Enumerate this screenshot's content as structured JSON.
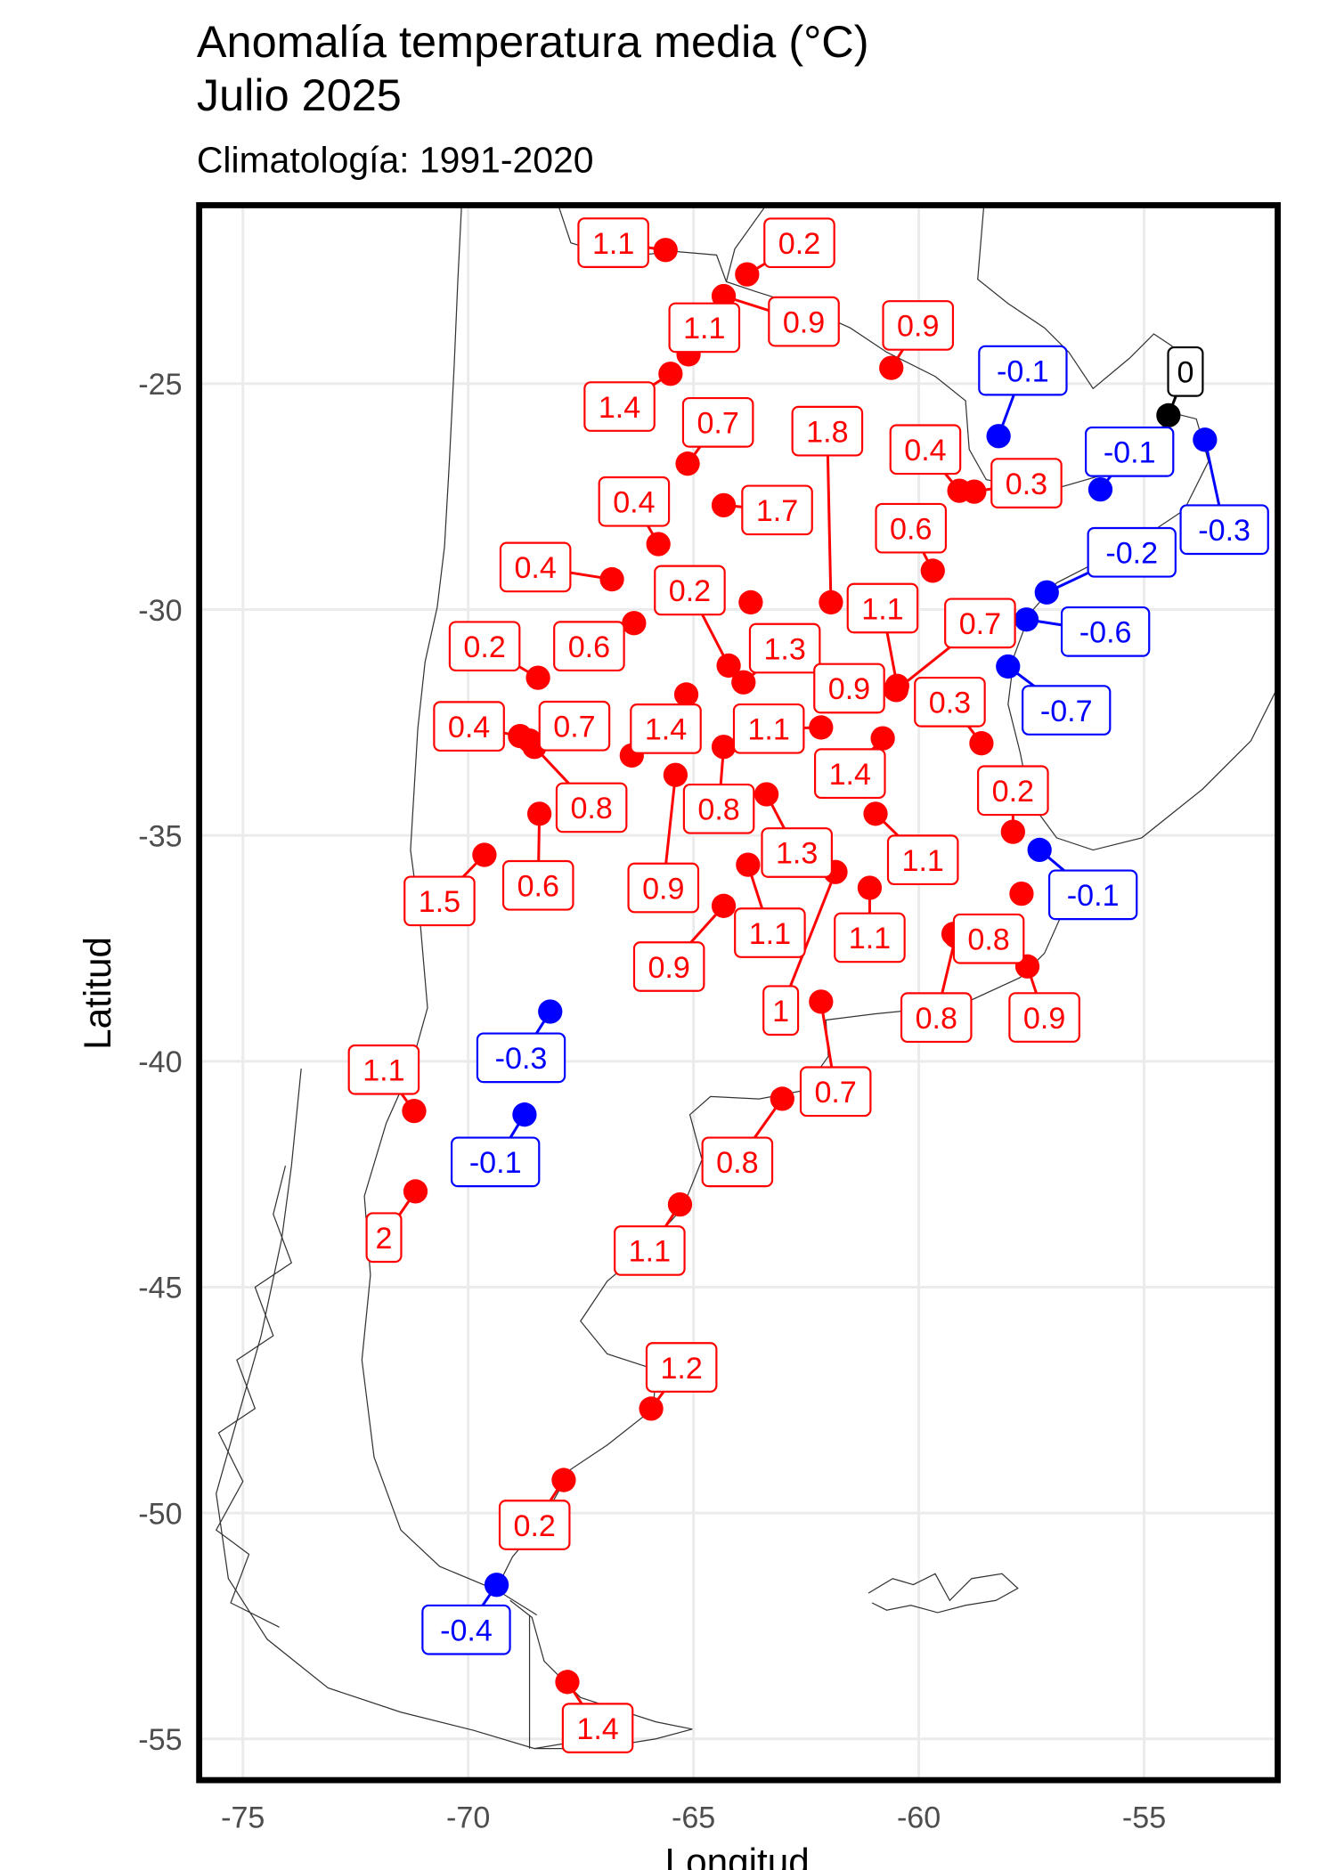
{
  "title_line1": "Anomalía temperatura media (°C)",
  "title_line2": "Julio 2025",
  "subtitle": "Climatología: 1991-2020",
  "chart_data": {
    "type": "scatter",
    "xlabel": "Longitud",
    "ylabel": "Latitud",
    "xlim": [
      -76,
      -52
    ],
    "ylim": [
      -56,
      -21
    ],
    "x_ticks": [
      -75,
      -70,
      -65,
      -60,
      -55
    ],
    "y_ticks": [
      -25,
      -30,
      -35,
      -40,
      -45,
      -50,
      -55
    ],
    "x_tick_labels": [
      "-75",
      "-70",
      "-65",
      "-60",
      "-55"
    ],
    "y_tick_labels": [
      "-25",
      "-30",
      "-35",
      "-40",
      "-45",
      "-50",
      "-55"
    ],
    "grid": true,
    "colors": {
      "positive": "#ff0000",
      "negative": "#0000ff",
      "zero": "#000000"
    },
    "stations": [
      {
        "lon": -65.62,
        "lat": -22.04,
        "value": 1.1
      },
      {
        "lon": -63.81,
        "lat": -22.58,
        "value": 0.2
      },
      {
        "lon": -64.33,
        "lat": -23.06,
        "value": 0.9
      },
      {
        "lon": -65.11,
        "lat": -24.35,
        "value": 1.1
      },
      {
        "lon": -65.51,
        "lat": -24.78,
        "value": 1.4
      },
      {
        "lon": -60.61,
        "lat": -24.65,
        "value": 0.9
      },
      {
        "lon": -58.23,
        "lat": -26.16,
        "value": -0.1
      },
      {
        "lon": -54.46,
        "lat": -25.7,
        "value": 0
      },
      {
        "lon": -53.65,
        "lat": -26.24,
        "value": -0.3
      },
      {
        "lon": -55.97,
        "lat": -27.34,
        "value": -0.1
      },
      {
        "lon": -65.13,
        "lat": -26.77,
        "value": 0.7
      },
      {
        "lon": -59.1,
        "lat": -27.37,
        "value": 0.4
      },
      {
        "lon": -58.77,
        "lat": -27.39,
        "value": 0.3
      },
      {
        "lon": -64.33,
        "lat": -27.69,
        "value": 1.7
      },
      {
        "lon": -61.95,
        "lat": -29.84,
        "value": 1.8
      },
      {
        "lon": -65.78,
        "lat": -28.55,
        "value": 0.4
      },
      {
        "lon": -59.69,
        "lat": -29.14,
        "value": 0.6
      },
      {
        "lon": -57.16,
        "lat": -29.62,
        "value": -0.2
      },
      {
        "lon": -66.81,
        "lat": -29.33,
        "value": 0.4
      },
      {
        "lon": -64.22,
        "lat": -31.24,
        "value": 0.2
      },
      {
        "lon": -63.89,
        "lat": -31.61,
        "value": 1.3
      },
      {
        "lon": -63.73,
        "lat": -29.84,
        "sign": "positive"
      },
      {
        "lon": -66.32,
        "lat": -30.3,
        "value": 0.6
      },
      {
        "lon": -68.45,
        "lat": -31.51,
        "value": 0.2
      },
      {
        "lon": -65.16,
        "lat": -31.88,
        "sign": "positive"
      },
      {
        "lon": -66.37,
        "lat": -33.23,
        "value": 1.4
      },
      {
        "lon": -68.85,
        "lat": -32.8,
        "value": 0.4
      },
      {
        "lon": -68.64,
        "lat": -32.9,
        "value": 0.7
      },
      {
        "lon": -68.53,
        "lat": -33.04,
        "value": 0.8
      },
      {
        "lon": -68.42,
        "lat": -34.52,
        "value": 0.6
      },
      {
        "lon": -69.64,
        "lat": -35.43,
        "value": 1.5
      },
      {
        "lon": -64.33,
        "lat": -33.04,
        "value": 0.8
      },
      {
        "lon": -62.17,
        "lat": -32.61,
        "value": 1.1
      },
      {
        "lon": -65.4,
        "lat": -33.66,
        "value": 0.9
      },
      {
        "lon": -63.38,
        "lat": -34.09,
        "value": 1.3
      },
      {
        "lon": -60.8,
        "lat": -32.85,
        "value": 1.4
      },
      {
        "lon": -60.96,
        "lat": -34.52,
        "value": 1.1
      },
      {
        "lon": -63.79,
        "lat": -35.65,
        "value": 1.1
      },
      {
        "lon": -64.33,
        "lat": -36.56,
        "value": 0.9
      },
      {
        "lon": -61.85,
        "lat": -35.81,
        "value": 1
      },
      {
        "lon": -61.09,
        "lat": -36.16,
        "value": 1.1
      },
      {
        "lon": -59.23,
        "lat": -37.18,
        "value": 0.8
      },
      {
        "lon": -59.18,
        "lat": -37.23,
        "value": 0.8
      },
      {
        "lon": -57.59,
        "lat": -37.9,
        "value": 0.9
      },
      {
        "lon": -57.72,
        "lat": -36.29,
        "sign": "positive"
      },
      {
        "lon": -58.61,
        "lat": -32.96,
        "value": 0.3
      },
      {
        "lon": -57.91,
        "lat": -34.92,
        "value": 0.2
      },
      {
        "lon": -57.32,
        "lat": -35.32,
        "value": -0.1
      },
      {
        "lon": -58.02,
        "lat": -31.26,
        "value": -0.7
      },
      {
        "lon": -57.61,
        "lat": -30.22,
        "value": -0.6
      },
      {
        "lon": -62.17,
        "lat": -38.68,
        "value": 0.7
      },
      {
        "lon": -63.03,
        "lat": -40.83,
        "value": 0.8
      },
      {
        "lon": -65.3,
        "lat": -43.17,
        "value": 1.1
      },
      {
        "lon": -65.94,
        "lat": -47.69,
        "value": 1.2
      },
      {
        "lon": -67.88,
        "lat": -49.27,
        "value": 0.2
      },
      {
        "lon": -69.37,
        "lat": -51.59,
        "value": -0.4
      },
      {
        "lon": -67.8,
        "lat": -53.74,
        "value": 1.4
      },
      {
        "lon": -71.2,
        "lat": -41.1,
        "value": 1.1
      },
      {
        "lon": -71.17,
        "lat": -42.88,
        "value": 2
      },
      {
        "lon": -68.18,
        "lat": -38.9,
        "value": -0.3
      },
      {
        "lon": -68.75,
        "lat": -41.18,
        "value": -0.1
      },
      {
        "lon": -60.52,
        "lat": -31.77,
        "value": 0.9
      },
      {
        "lon": -60.48,
        "lat": -31.69,
        "value": 1.1
      },
      {
        "lon": -60.5,
        "lat": -31.78,
        "value": 0.7
      }
    ]
  }
}
